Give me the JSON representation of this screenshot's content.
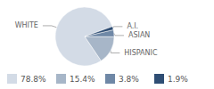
{
  "chart_data": {
    "type": "pie",
    "categories": [
      "WHITE",
      "HISPANIC",
      "ASIAN",
      "A.I."
    ],
    "values": [
      78.8,
      15.4,
      3.8,
      1.9
    ],
    "value_labels": [
      "78.8%",
      "15.4%",
      "3.8%",
      "1.9%"
    ],
    "colors": [
      "#d3dbe6",
      "#a7b6c8",
      "#6f88a6",
      "#2f4e74"
    ]
  }
}
